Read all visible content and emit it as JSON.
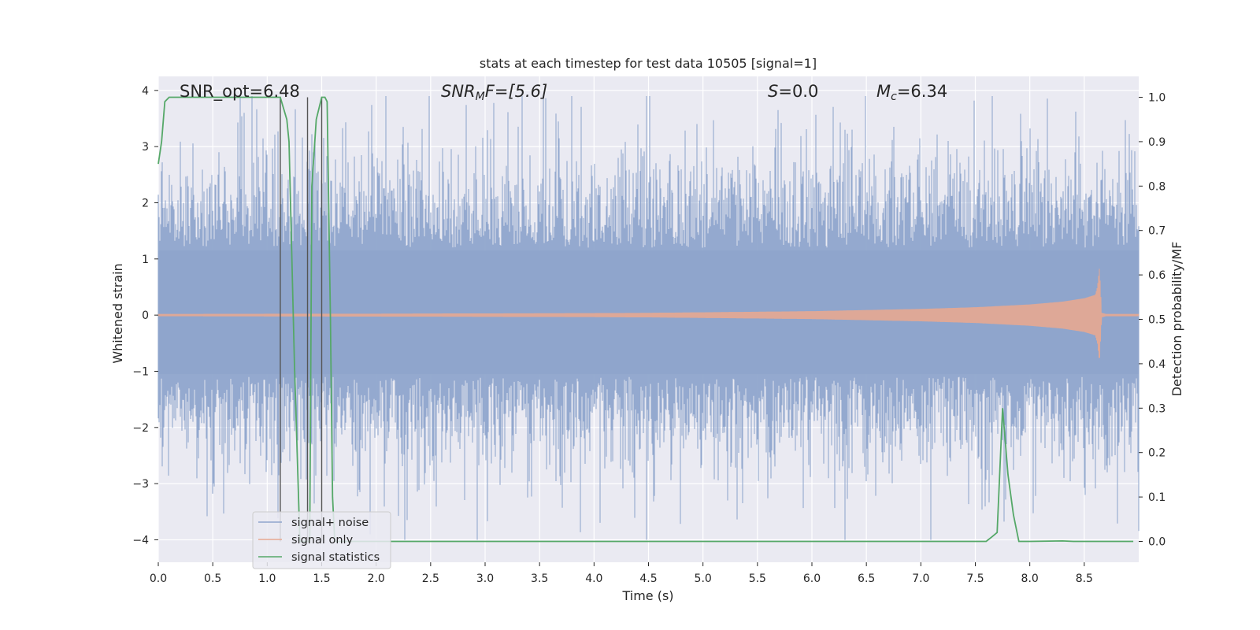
{
  "chart_data": {
    "type": "line",
    "title": "stats at each timestep for test data 10505 [signal=1]",
    "xlabel": "Time (s)",
    "ylabel": "Whitened strain",
    "y2label": "Detection probability/MF",
    "xlim": [
      0.0,
      9.0
    ],
    "ylim": [
      -4.4,
      4.25
    ],
    "y2lim": [
      -0.047,
      1.047
    ],
    "x_ticks": [
      0.0,
      0.5,
      1.0,
      1.5,
      2.0,
      2.5,
      3.0,
      3.5,
      4.0,
      4.5,
      5.0,
      5.5,
      6.0,
      6.5,
      7.0,
      7.5,
      8.0,
      8.5
    ],
    "x_tick_labels": [
      "0.0",
      "0.5",
      "1.0",
      "1.5",
      "2.0",
      "2.5",
      "3.0",
      "3.5",
      "4.0",
      "4.5",
      "5.0",
      "5.5",
      "6.0",
      "6.5",
      "7.0",
      "7.5",
      "8.0",
      "8.5"
    ],
    "y_ticks": [
      4,
      3,
      2,
      1,
      0,
      -1,
      -2,
      -3,
      -4
    ],
    "y_tick_labels": [
      "4",
      "3",
      "2",
      "1",
      "0",
      "−1",
      "−2",
      "−3",
      "−4"
    ],
    "y2_ticks": [
      1.0,
      0.9,
      0.8,
      0.7,
      0.6,
      0.5,
      0.4,
      0.3,
      0.2,
      0.1,
      0.0
    ],
    "y2_tick_labels": [
      "1.0",
      "0.9",
      "0.8",
      "0.7",
      "0.6",
      "0.5",
      "0.4",
      "0.3",
      "0.2",
      "0.1",
      "0.0"
    ],
    "grid": true,
    "legend_position": "lower-left",
    "annotations": {
      "snr_opt": "SNR_opt=6.48",
      "snr_mf_main": "SNR",
      "snr_mf_sub": "M",
      "snr_mf_rest": "F=[5.6]",
      "s_main": "S",
      "s_rest": "=0.0",
      "mc_main": "M",
      "mc_sub": "c",
      "mc_rest": "=6.34"
    },
    "series": [
      {
        "name": "signal+ noise",
        "color": "#8fa5cc",
        "axis": "left",
        "description_values": "noise-dominated whitened strain spanning roughly -4 to 4",
        "typical_range": [
          -1.7,
          2.3
        ],
        "extreme_range": [
          -4.0,
          3.9
        ]
      },
      {
        "name": "signal only",
        "color": "#e7a891",
        "axis": "left",
        "envelope_x": [
          0.0,
          2.0,
          3.0,
          4.0,
          4.5,
          5.0,
          5.5,
          6.0,
          6.5,
          7.0,
          7.5,
          8.0,
          8.3,
          8.5,
          8.6,
          8.62,
          8.64,
          8.66,
          8.7,
          9.0
        ],
        "envelope_amp": [
          0.02,
          0.025,
          0.03,
          0.035,
          0.04,
          0.05,
          0.06,
          0.07,
          0.09,
          0.11,
          0.14,
          0.19,
          0.24,
          0.3,
          0.36,
          0.5,
          0.85,
          0.04,
          0.02,
          0.02
        ]
      },
      {
        "name": "signal statistics",
        "color": "#55a868",
        "axis": "right",
        "x": [
          0.0,
          0.03,
          0.06,
          0.1,
          0.2,
          0.3,
          0.5,
          0.7,
          1.0,
          1.12,
          1.18,
          1.2,
          1.25,
          1.3,
          1.35,
          1.37,
          1.39,
          1.41,
          1.45,
          1.5,
          1.53,
          1.55,
          1.58,
          1.6,
          1.62,
          1.65,
          1.7,
          1.75,
          2.0,
          3.0,
          4.0,
          5.0,
          6.0,
          7.0,
          7.5,
          7.6,
          7.65,
          7.7,
          7.75,
          7.8,
          7.85,
          7.9,
          8.0,
          8.3,
          8.4,
          8.95
        ],
        "y": [
          0.85,
          0.9,
          0.99,
          1.0,
          1.0,
          1.0,
          1.0,
          1.0,
          1.0,
          1.0,
          0.95,
          0.9,
          0.4,
          0.0,
          0.0,
          0.0,
          0.0,
          0.8,
          0.95,
          1.0,
          1.0,
          0.99,
          0.5,
          0.1,
          0.0,
          0.0,
          0.0,
          0.0,
          0.0,
          0.0,
          0.0,
          0.0,
          0.0,
          0.0,
          0.0,
          0.0,
          0.01,
          0.02,
          0.3,
          0.15,
          0.06,
          0.0,
          0.0,
          0.001,
          0.0,
          0.0
        ]
      }
    ],
    "vertical_lines_x": [
      1.12,
      1.37,
      1.5
    ]
  }
}
